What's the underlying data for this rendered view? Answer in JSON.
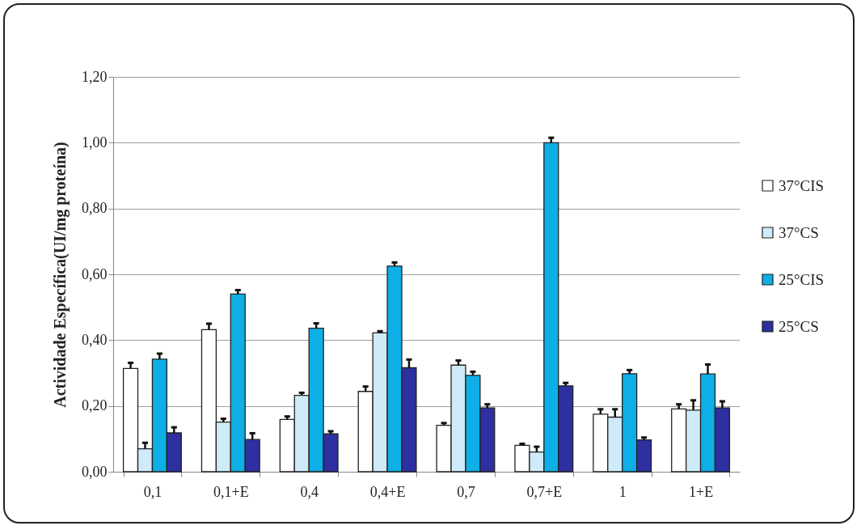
{
  "chart_data": {
    "type": "bar",
    "ylabel": "Actividade Específica(UI/mg proteína)",
    "categories": [
      "0,1",
      "0,1+E",
      "0,4",
      "0,4+E",
      "0,7",
      "0,7+E",
      "1",
      "1+E"
    ],
    "ylim": [
      0,
      1.2
    ],
    "yticks": [
      {
        "value": 0,
        "label": "0,00"
      },
      {
        "value": 0.2,
        "label": "0,20"
      },
      {
        "value": 0.4,
        "label": "0,40"
      },
      {
        "value": 0.6,
        "label": "0,60"
      },
      {
        "value": 0.8,
        "label": "0,80"
      },
      {
        "value": 1,
        "label": "1,00"
      },
      {
        "value": 1.2,
        "label": "1,20"
      }
    ],
    "grid": "y",
    "legend": "right",
    "series": [
      {
        "name": "37°CIS",
        "color": "#ffffff",
        "values": [
          0.314,
          0.432,
          0.159,
          0.244,
          0.141,
          0.08,
          0.175,
          0.191
        ],
        "errors": [
          [
            0.314,
            0.331
          ],
          [
            0.432,
            0.45
          ],
          [
            0.159,
            0.168
          ],
          [
            0.244,
            0.259
          ],
          [
            0.141,
            0.148
          ],
          [
            0.08,
            0.085
          ],
          [
            0.175,
            0.19
          ],
          [
            0.191,
            0.205
          ]
        ]
      },
      {
        "name": "37°CS",
        "color": "#cfeaf8",
        "values": [
          0.07,
          0.151,
          0.232,
          0.422,
          0.324,
          0.06,
          0.166,
          0.187
        ],
        "errors": [
          [
            0.07,
            0.088
          ],
          [
            0.151,
            0.161
          ],
          [
            0.232,
            0.24
          ],
          [
            0.422,
            0.427
          ],
          [
            0.324,
            0.338
          ],
          [
            0.06,
            0.076
          ],
          [
            0.166,
            0.19
          ],
          [
            0.187,
            0.217
          ]
        ]
      },
      {
        "name": "25°CIS",
        "color": "#0eaee6",
        "values": [
          0.342,
          0.54,
          0.436,
          0.625,
          0.293,
          1.0,
          0.298,
          0.297
        ],
        "errors": [
          [
            0.342,
            0.359
          ],
          [
            0.54,
            0.552
          ],
          [
            0.436,
            0.451
          ],
          [
            0.625,
            0.636
          ],
          [
            0.293,
            0.304
          ],
          [
            1.0,
            1.015
          ],
          [
            0.298,
            0.309
          ],
          [
            0.297,
            0.326
          ]
        ]
      },
      {
        "name": "25°CS",
        "color": "#2e2fa0",
        "values": [
          0.118,
          0.098,
          0.115,
          0.316,
          0.194,
          0.261,
          0.097,
          0.194
        ],
        "errors": [
          [
            0.118,
            0.135
          ],
          [
            0.098,
            0.117
          ],
          [
            0.115,
            0.123
          ],
          [
            0.316,
            0.341
          ],
          [
            0.194,
            0.205
          ],
          [
            0.261,
            0.27
          ],
          [
            0.097,
            0.104
          ],
          [
            0.194,
            0.214
          ]
        ]
      }
    ]
  }
}
